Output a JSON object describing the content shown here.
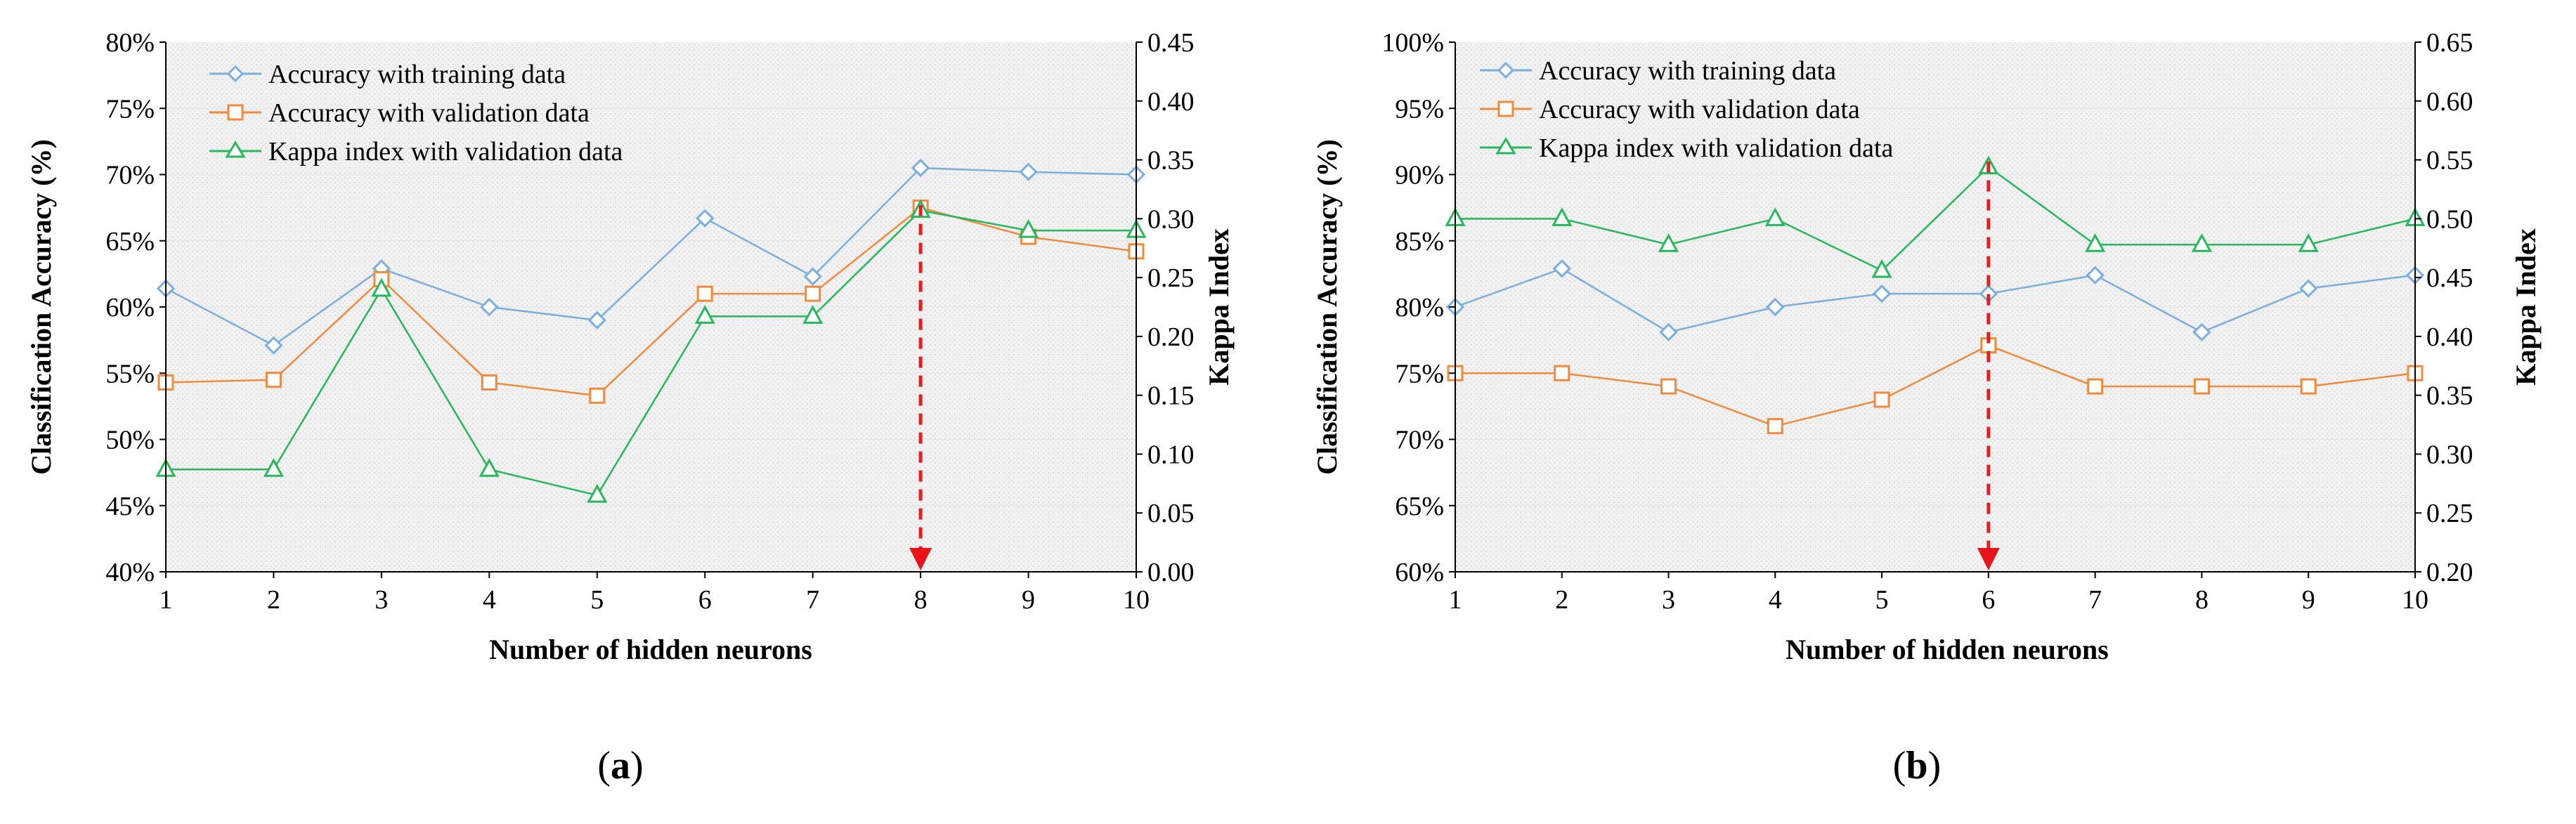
{
  "chart_data": [
    {
      "type": "line",
      "panel_label": "(a)",
      "panel_letter": "a",
      "xlabel": "Number of hidden neurons",
      "ylabel": "Classification Accuracy (%)",
      "y2label": "Kappa Index",
      "x": [
        1,
        2,
        3,
        4,
        5,
        6,
        7,
        8,
        9,
        10
      ],
      "ylim": [
        40,
        80
      ],
      "yticks": [
        "40%",
        "45%",
        "50%",
        "55%",
        "60%",
        "65%",
        "70%",
        "75%",
        "80%"
      ],
      "y2lim": [
        0,
        0.45
      ],
      "y2ticks": [
        "0.00",
        "0.05",
        "0.10",
        "0.15",
        "0.20",
        "0.25",
        "0.30",
        "0.35",
        "0.40",
        "0.45"
      ],
      "series": [
        {
          "name": "Accuracy with training data",
          "axis": "left",
          "marker": "diamond",
          "color": "#7aaedf",
          "values": [
            61.4,
            57.1,
            62.9,
            60.0,
            59.0,
            66.7,
            62.3,
            70.5,
            70.2,
            70.0
          ]
        },
        {
          "name": "Accuracy with validation data",
          "axis": "left",
          "marker": "square",
          "color": "#f08a3c",
          "values": [
            54.3,
            54.5,
            62.1,
            54.3,
            53.3,
            61.0,
            61.0,
            67.5,
            65.3,
            64.2
          ]
        },
        {
          "name": "Kappa index with validation data",
          "axis": "right",
          "marker": "triangle",
          "color": "#26b85a",
          "values": [
            0.087,
            0.087,
            0.24,
            0.087,
            0.065,
            0.217,
            0.217,
            0.307,
            0.29,
            0.29
          ]
        }
      ],
      "marker_arrow_x": 8
    },
    {
      "type": "line",
      "panel_label": "(b)",
      "panel_letter": "b",
      "xlabel": "Number of hidden neurons",
      "ylabel": "Classification Accuracy (%)",
      "y2label": "Kappa Index",
      "x": [
        1,
        2,
        3,
        4,
        5,
        6,
        7,
        8,
        9,
        10
      ],
      "ylim": [
        60,
        100
      ],
      "yticks": [
        "60%",
        "65%",
        "70%",
        "75%",
        "80%",
        "85%",
        "90%",
        "95%",
        "100%"
      ],
      "y2lim": [
        0.2,
        0.65
      ],
      "y2ticks": [
        "0.20",
        "0.25",
        "0.30",
        "0.35",
        "0.40",
        "0.45",
        "0.50",
        "0.55",
        "0.60",
        "0.65"
      ],
      "series": [
        {
          "name": "Accuracy with training data",
          "axis": "left",
          "marker": "diamond",
          "color": "#7aaedf",
          "values": [
            80.0,
            82.9,
            78.1,
            80.0,
            81.0,
            81.0,
            82.4,
            78.1,
            81.4,
            82.4
          ]
        },
        {
          "name": "Accuracy with validation data",
          "axis": "left",
          "marker": "square",
          "color": "#f08a3c",
          "values": [
            75.0,
            75.0,
            74.0,
            71.0,
            73.0,
            77.1,
            74.0,
            74.0,
            74.0,
            75.0
          ]
        },
        {
          "name": "Kappa index with validation data",
          "axis": "right",
          "marker": "triangle",
          "color": "#26b85a",
          "values": [
            0.5,
            0.5,
            0.478,
            0.5,
            0.456,
            0.544,
            0.478,
            0.478,
            0.478,
            0.5
          ]
        }
      ],
      "marker_arrow_x": 6
    }
  ]
}
